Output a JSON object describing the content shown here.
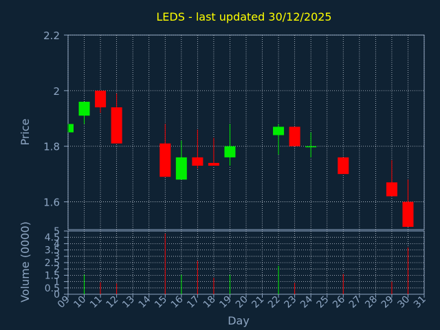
{
  "chart_data": [
    {
      "type": "candlestick",
      "title": "LEDS - last updated 30/12/2025",
      "ylabel": "Price",
      "ylim": [
        1.5,
        2.2
      ],
      "yticks": [
        {
          "value": 1.6,
          "label": "1.6"
        },
        {
          "value": 1.8,
          "label": "1.8"
        },
        {
          "value": 2.0,
          "label": "2"
        },
        {
          "value": 2.2,
          "label": "2.2"
        }
      ],
      "grid": true,
      "up_color": "#00ee00",
      "down_color": "#ff0000",
      "candles": [
        {
          "day": 9,
          "open": 1.85,
          "close": 1.88,
          "high": 1.88,
          "low": 1.85
        },
        {
          "day": 10,
          "open": 1.91,
          "close": 1.96,
          "high": 1.96,
          "low": 1.88
        },
        {
          "day": 11,
          "open": 2.0,
          "close": 1.94,
          "high": 2.0,
          "low": 1.92
        },
        {
          "day": 12,
          "open": 1.94,
          "close": 1.81,
          "high": 1.99,
          "low": 1.81
        },
        {
          "day": 15,
          "open": 1.81,
          "close": 1.69,
          "high": 1.88,
          "low": 1.69
        },
        {
          "day": 16,
          "open": 1.68,
          "close": 1.76,
          "high": 1.82,
          "low": 1.68
        },
        {
          "day": 17,
          "open": 1.76,
          "close": 1.73,
          "high": 1.86,
          "low": 1.72
        },
        {
          "day": 18,
          "open": 1.74,
          "close": 1.73,
          "high": 1.83,
          "low": 1.73
        },
        {
          "day": 19,
          "open": 1.76,
          "close": 1.8,
          "high": 1.88,
          "low": 1.73
        },
        {
          "day": 22,
          "open": 1.84,
          "close": 1.87,
          "high": 1.88,
          "low": 1.77
        },
        {
          "day": 23,
          "open": 1.87,
          "close": 1.8,
          "high": 1.87,
          "low": 1.8
        },
        {
          "day": 24,
          "open": 1.8,
          "close": 1.8,
          "high": 1.85,
          "low": 1.76
        },
        {
          "day": 26,
          "open": 1.76,
          "close": 1.7,
          "high": 1.76,
          "low": 1.7
        },
        {
          "day": 29,
          "open": 1.67,
          "close": 1.62,
          "high": 1.75,
          "low": 1.62
        },
        {
          "day": 30,
          "open": 1.6,
          "close": 1.51,
          "high": 1.68,
          "low": 1.51
        }
      ]
    },
    {
      "type": "bar",
      "ylabel": "Volume (0000)",
      "xlabel": "Day",
      "ylim": [
        0,
        5
      ],
      "yticks": [
        "0",
        "0.5",
        "1",
        "1.5",
        "2",
        "2.5",
        "3",
        "3.5",
        "4",
        "4.5",
        "5"
      ],
      "xticks": [
        "09",
        "10",
        "11",
        "12",
        "13",
        "14",
        "15",
        "16",
        "17",
        "18",
        "19",
        "20",
        "21",
        "22",
        "23",
        "24",
        "25",
        "26",
        "27",
        "28",
        "29",
        "30",
        "31"
      ],
      "grid": true,
      "bars": [
        {
          "day": 10,
          "value": 1.55,
          "direction": "up"
        },
        {
          "day": 11,
          "value": 0.95,
          "direction": "down"
        },
        {
          "day": 12,
          "value": 0.85,
          "direction": "down"
        },
        {
          "day": 15,
          "value": 4.8,
          "direction": "down"
        },
        {
          "day": 16,
          "value": 1.55,
          "direction": "up"
        },
        {
          "day": 17,
          "value": 2.65,
          "direction": "down"
        },
        {
          "day": 18,
          "value": 1.3,
          "direction": "down"
        },
        {
          "day": 19,
          "value": 1.55,
          "direction": "up"
        },
        {
          "day": 22,
          "value": 2.25,
          "direction": "up"
        },
        {
          "day": 23,
          "value": 0.9,
          "direction": "down"
        },
        {
          "day": 26,
          "value": 1.6,
          "direction": "down"
        },
        {
          "day": 29,
          "value": 1.0,
          "direction": "down"
        },
        {
          "day": 30,
          "value": 3.7,
          "direction": "down"
        }
      ]
    }
  ],
  "colors": {
    "background": "#0f2233",
    "axis": "#8fa7c4",
    "title": "#ffff00",
    "grid": "#c8d0dc"
  }
}
